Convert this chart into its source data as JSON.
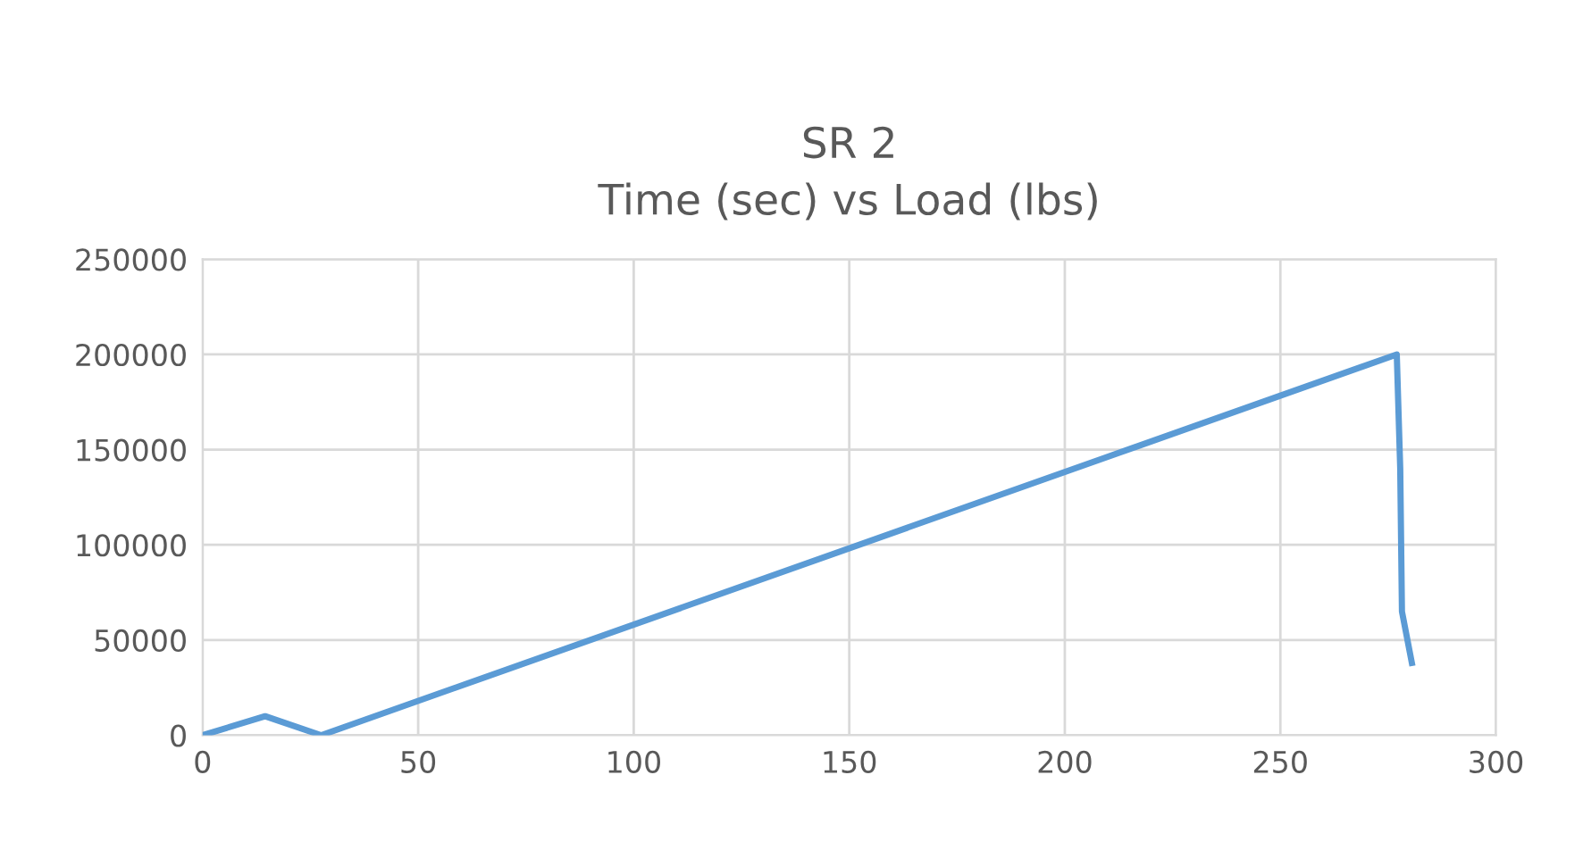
{
  "chart_data": {
    "type": "line",
    "title": "SR 2\nTime (sec) vs Load (lbs)",
    "x": [
      0,
      14.5,
      27.5,
      277,
      277.8,
      278.2,
      280.5
    ],
    "series": [
      {
        "color": "#5b9bd5",
        "values": [
          0,
          10000,
          0,
          200000,
          140000,
          65000,
          38000
        ]
      }
    ],
    "xlim": [
      0,
      300
    ],
    "xticks": [
      0,
      50,
      100,
      150,
      200,
      250,
      300
    ],
    "ylim": [
      0,
      250000
    ],
    "yticks": [
      0,
      50000,
      100000,
      150000,
      200000,
      250000
    ],
    "grid": true,
    "marker": "none",
    "line_style": "solid",
    "legend": false
  }
}
